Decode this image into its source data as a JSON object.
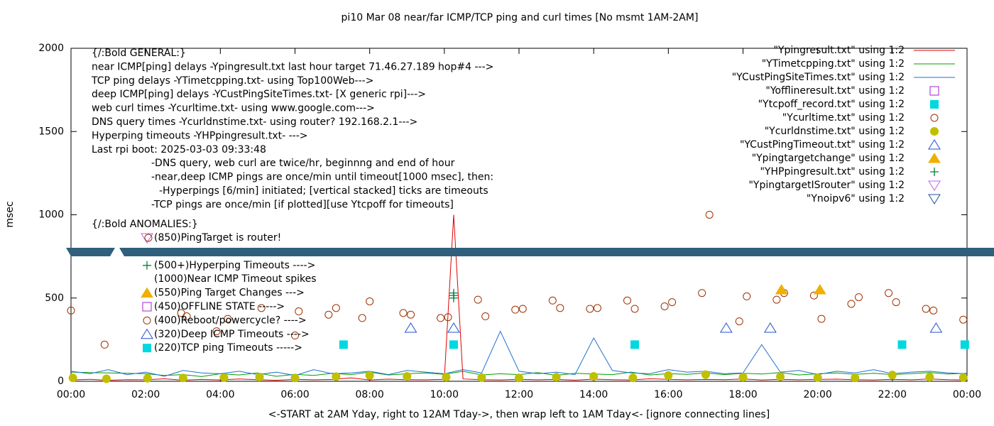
{
  "chart_data": {
    "type": "line",
    "title": "pi10 Mar 08  near/far ICMP/TCP ping and curl times [No msmt 1AM-2AM]",
    "x_label": "<-START at 2AM Yday, right to 12AM Tday->, then wrap left to 1AM Tday<- [ignore connecting lines]",
    "y_label": "msec",
    "xlim": [
      0,
      24
    ],
    "ylim": [
      0,
      2000
    ],
    "xticks": [
      {
        "value": 0,
        "label": "00:00"
      },
      {
        "value": 2,
        "label": "02:00"
      },
      {
        "value": 4,
        "label": "04:00"
      },
      {
        "value": 6,
        "label": "06:00"
      },
      {
        "value": 8,
        "label": "08:00"
      },
      {
        "value": 10,
        "label": "10:00"
      },
      {
        "value": 12,
        "label": "12:00"
      },
      {
        "value": 14,
        "label": "14:00"
      },
      {
        "value": 16,
        "label": "16:00"
      },
      {
        "value": 18,
        "label": "18:00"
      },
      {
        "value": 20,
        "label": "20:00"
      },
      {
        "value": 22,
        "label": "22:00"
      },
      {
        "value": 24,
        "label": "00:00"
      }
    ],
    "yticks": [
      0,
      500,
      1000,
      1500,
      2000
    ],
    "notes": [
      "{/:Bold GENERAL:}",
      "near ICMP[ping] delays -Ypingresult.txt last hour target 71.46.27.189 hop#4 --->",
      "TCP ping delays -YTimetcpping.txt- using Top100Web--->",
      "deep ICMP[ping] delays -YCustPingSiteTimes.txt- [X generic rpi]--->",
      "web curl times -Ycurltime.txt- using www.google.com--->",
      "DNS query times -Ycurldnstime.txt- using router? 192.168.2.1--->",
      "Hyperping timeouts -YHPpingresult.txt- --->",
      "Last rpi boot: 2025-03-03 09:33:48",
      "-DNS query, web curl are twice/hr, beginnng and end of hour",
      "-near,deep ICMP pings are once/min until timeout[1000 msec], then:",
      "-Hyperpings [6/min] initiated; [vertical stacked] ticks are timeouts",
      "-TCP pings are once/min [if plotted][use Ytcpoff for timeouts]",
      "{/:Bold ANOMALIES:}"
    ],
    "anomalies": [
      "(850)PingTarget is router!",
      "(500+)Hyperping Timeouts ---->",
      "(1000)Near ICMP Timeout spikes",
      "(550)Ping Target Changes --->",
      "(450)OFFLINE STATE ----->",
      "(400)Reboot/powercycle? ---->",
      "(320)Deep ICMP Timeouts ---->",
      "(220)TCP ping Timeouts ----->"
    ],
    "series": [
      {
        "name": "\"Ypingresult.txt\" using 1:2",
        "color": "#e00000",
        "style": "line",
        "x": [
          0,
          0.5,
          1,
          1.5,
          2,
          2.5,
          3,
          3.5,
          4,
          4.5,
          5,
          5.5,
          6,
          6.5,
          7,
          7.5,
          8,
          8.5,
          9,
          9.5,
          10,
          10.25,
          10.5,
          11,
          11.5,
          12,
          12.5,
          13,
          13.5,
          14,
          14.5,
          15,
          15.5,
          16,
          16.5,
          17,
          17.5,
          18,
          18.5,
          19,
          19.5,
          20,
          20.5,
          21,
          21.5,
          22,
          22.5,
          23,
          23.5,
          24
        ],
        "values": [
          8,
          12,
          6,
          10,
          9,
          15,
          7,
          11,
          8,
          14,
          10,
          6,
          12,
          9,
          11,
          20,
          8,
          13,
          10,
          9,
          12,
          1000,
          14,
          10,
          8,
          12,
          9,
          11,
          7,
          13,
          10,
          8,
          15,
          12,
          9,
          11,
          10,
          14,
          8,
          12,
          9,
          11,
          13,
          10,
          8,
          12,
          9,
          14,
          10,
          8
        ]
      },
      {
        "name": "\"YTimetcpping.txt\" using 1:2",
        "color": "#009e00",
        "style": "line",
        "x": [
          0,
          0.5,
          1,
          1.5,
          2,
          2.5,
          3,
          3.5,
          4,
          4.5,
          5,
          5.5,
          6,
          6.5,
          7,
          7.5,
          8,
          8.5,
          9,
          9.5,
          10,
          10.5,
          11,
          11.5,
          12,
          12.5,
          13,
          13.5,
          14,
          14.5,
          15,
          15.5,
          16,
          16.5,
          17,
          17.5,
          18,
          18.5,
          19,
          19.5,
          20,
          20.5,
          21,
          21.5,
          22,
          22.5,
          23,
          23.5,
          24
        ],
        "values": [
          55,
          52,
          50,
          48,
          45,
          35,
          40,
          28,
          45,
          38,
          50,
          30,
          42,
          35,
          48,
          40,
          55,
          38,
          45,
          50,
          42,
          60,
          38,
          45,
          40,
          52,
          36,
          48,
          44,
          40,
          55,
          38,
          46,
          42,
          50,
          40,
          48,
          44,
          52,
          38,
          45,
          50,
          42,
          48,
          40,
          46,
          52,
          44,
          48
        ]
      },
      {
        "name": "\"YCustPingSiteTimes.txt\" using 1:2",
        "color": "#2070d0",
        "style": "line",
        "x": [
          0,
          0.5,
          1,
          1.5,
          2,
          2.5,
          3,
          3.5,
          4,
          4.5,
          5,
          5.5,
          6,
          6.5,
          7,
          7.5,
          8,
          8.5,
          9,
          9.5,
          10,
          10.5,
          11,
          11.5,
          12,
          12.5,
          13,
          13.5,
          14,
          14.5,
          15,
          15.5,
          16,
          16.5,
          17,
          17.5,
          18,
          18.5,
          19,
          19.5,
          20,
          20.5,
          21,
          21.5,
          22,
          22.5,
          23,
          23.5,
          24
        ],
        "values": [
          60,
          45,
          70,
          40,
          55,
          30,
          65,
          50,
          45,
          60,
          40,
          55,
          35,
          70,
          45,
          50,
          60,
          40,
          65,
          55,
          45,
          70,
          50,
          300,
          60,
          45,
          55,
          40,
          260,
          65,
          50,
          45,
          70,
          55,
          60,
          45,
          50,
          220,
          55,
          65,
          40,
          60,
          50,
          70,
          45,
          55,
          60,
          50,
          45
        ]
      },
      {
        "name": "\"Yofflineresult.txt\" using 1:2",
        "color": "#a020d0",
        "style": "open-square",
        "x": [],
        "values": []
      },
      {
        "name": "\"Ytcpoff_record.txt\" using 1:2",
        "color": "#00d8e0",
        "style": "filled-square",
        "x": [
          7.3,
          10.25,
          15.1,
          22.26,
          23.94
        ],
        "values": [
          220,
          220,
          220,
          220,
          220
        ]
      },
      {
        "name": "\"Ycurltime.txt\" using 1:2",
        "color": "#a03000",
        "style": "open-circle",
        "x": [
          0,
          0.9,
          2.95,
          3.1,
          3.9,
          4.2,
          5.1,
          6.0,
          6.1,
          6.9,
          7.1,
          7.8,
          8.0,
          8.9,
          9.1,
          9.9,
          10.1,
          10.9,
          11.1,
          11.9,
          12.1,
          12.9,
          13.1,
          13.9,
          14.1,
          14.9,
          15.1,
          15.9,
          16.1,
          16.9,
          17.1,
          17.9,
          18.1,
          18.9,
          19.1,
          19.9,
          20.1,
          20.9,
          21.1,
          21.9,
          22.1,
          22.9,
          23.1,
          23.9
        ],
        "values": [
          425,
          220,
          410,
          390,
          300,
          375,
          440,
          275,
          420,
          400,
          440,
          380,
          480,
          410,
          400,
          380,
          385,
          490,
          390,
          430,
          435,
          485,
          440,
          435,
          440,
          485,
          435,
          450,
          475,
          530,
          1000,
          360,
          510,
          490,
          530,
          515,
          375,
          465,
          505,
          530,
          475,
          435,
          425,
          370
        ]
      },
      {
        "name": "\"Ycurldnstime.txt\" using 1:2",
        "color": "#c0c000",
        "style": "filled-circle",
        "x": [
          0.05,
          0.95,
          2.05,
          3.0,
          4.1,
          5.05,
          6.0,
          7.1,
          8.0,
          9.0,
          10.05,
          11.0,
          12.0,
          13.0,
          14.0,
          15.05,
          16.0,
          17.0,
          18.0,
          19.0,
          20.0,
          21.0,
          22.0,
          23.0,
          23.9
        ],
        "values": [
          20,
          15,
          18,
          20,
          22,
          25,
          20,
          28,
          35,
          30,
          25,
          22,
          20,
          25,
          30,
          20,
          35,
          40,
          25,
          28,
          22,
          20,
          38,
          25,
          22
        ]
      },
      {
        "name": "\"YCustPingTimeout.txt\" using 1:2",
        "color": "#2050d0",
        "style": "open-triangle",
        "x": [
          9.1,
          10.25,
          17.55,
          18.73,
          23.17
        ],
        "values": [
          320,
          320,
          320,
          320,
          320
        ]
      },
      {
        "name": "\"Ypingtargetchange\" using 1:2",
        "color": "#f0b000",
        "style": "filled-triangle",
        "x": [
          19.03,
          20.06
        ],
        "values": [
          550,
          550
        ]
      },
      {
        "name": "\"YHPpingresult.txt\" using 1:2",
        "color": "#008040",
        "style": "plus",
        "x": [
          10.25,
          10.25,
          10.25
        ],
        "values": [
          500,
          515,
          530
        ]
      },
      {
        "name": "\"YpingtargetISrouter\" using 1:2",
        "color": "#c060f0",
        "style": "down-triangle",
        "x": [],
        "values": []
      },
      {
        "name": "\"Ynoipv6\" using 1:2",
        "color": "#2050a0",
        "style": "down-triangle",
        "x": [],
        "values": []
      }
    ]
  }
}
